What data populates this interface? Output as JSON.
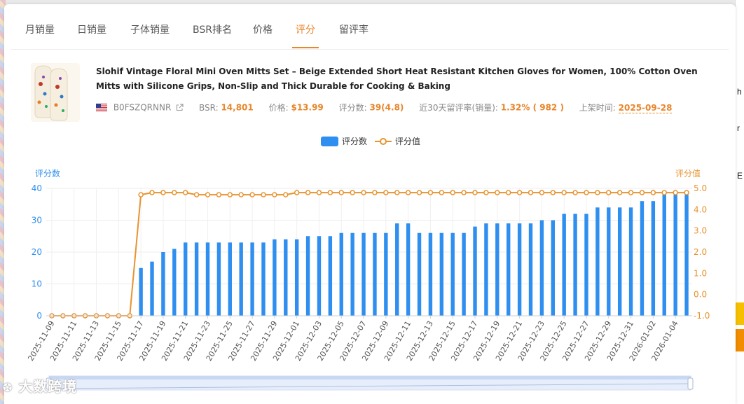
{
  "tabs": [
    {
      "label": "月销量"
    },
    {
      "label": "日销量"
    },
    {
      "label": "子体销量"
    },
    {
      "label": "BSR排名"
    },
    {
      "label": "价格"
    },
    {
      "label": "评分"
    },
    {
      "label": "留评率"
    }
  ],
  "active_tab": "评分",
  "product": {
    "title": "Slohif Vintage Floral Mini Oven Mitts Set – Beige Extended Short Heat Resistant Kitchen Gloves for Women, 100% Cotton Oven Mitts with Silicone Grips, Non-Slip and Thick Durable for Cooking & Baking",
    "asin": "B0FSZQRNNR",
    "bsr_label": "BSR:",
    "bsr_value": "14,801",
    "price_label": "价格:",
    "price_value": "$13.99",
    "rating_count_label": "评分数:",
    "rating_count_value": "39(4.8)",
    "review_rate_label": "近30天留评率(销量):",
    "review_rate_value": "1.32% ( 982 )",
    "launch_label": "上架时间:",
    "launch_value": "2025-09-28"
  },
  "watermark": "大数跨境",
  "colors": {
    "bar": "#2f8ff0",
    "line": "#e8932f",
    "accent": "#e8862c"
  },
  "icons": {
    "flag": "us-flag-icon",
    "external": "external-link-icon"
  },
  "chart_data": {
    "type": "bar+line",
    "legend": [
      "评分数",
      "评分值"
    ],
    "legend_position": "top-center",
    "yleft_label": "评分数",
    "yright_label": "评分值",
    "yleft_ticks": [
      "0",
      "10",
      "20",
      "30",
      "40"
    ],
    "yright_ticks": [
      "-1.0",
      "0.0",
      "1.0",
      "2.0",
      "3.0",
      "4.0",
      "5.0"
    ],
    "yleft_range": [
      0,
      40
    ],
    "yright_range": [
      -1,
      5
    ],
    "grid": true,
    "x": [
      "2025-11-09",
      "2025-11-10",
      "2025-11-11",
      "2025-11-12",
      "2025-11-13",
      "2025-11-14",
      "2025-11-15",
      "2025-11-16",
      "2025-11-17",
      "2025-11-18",
      "2025-11-19",
      "2025-11-20",
      "2025-11-21",
      "2025-11-22",
      "2025-11-23",
      "2025-11-24",
      "2025-11-25",
      "2025-11-26",
      "2025-11-27",
      "2025-11-28",
      "2025-11-29",
      "2025-11-30",
      "2025-12-01",
      "2025-12-02",
      "2025-12-03",
      "2025-12-04",
      "2025-12-05",
      "2025-12-06",
      "2025-12-07",
      "2025-12-08",
      "2025-12-09",
      "2025-12-10",
      "2025-12-11",
      "2025-12-12",
      "2025-12-13",
      "2025-12-14",
      "2025-12-15",
      "2025-12-16",
      "2025-12-17",
      "2025-12-18",
      "2025-12-19",
      "2025-12-20",
      "2025-12-21",
      "2025-12-22",
      "2025-12-23",
      "2025-12-24",
      "2025-12-25",
      "2025-12-26",
      "2025-12-27",
      "2025-12-28",
      "2025-12-29",
      "2025-12-30",
      "2025-12-31",
      "2026-01-01",
      "2026-01-02",
      "2026-01-03",
      "2026-01-04",
      "2026-01-05"
    ],
    "x_tick_labels": [
      "2025-11-09",
      "2025-11-11",
      "2025-11-13",
      "2025-11-15",
      "2025-11-17",
      "2025-11-19",
      "2025-11-21",
      "2025-11-23",
      "2025-11-25",
      "2025-11-27",
      "2025-11-29",
      "2025-12-01",
      "2025-12-03",
      "2025-12-05",
      "2025-12-07",
      "2025-12-09",
      "2025-12-11",
      "2025-12-13",
      "2025-12-15",
      "2025-12-17",
      "2025-12-19",
      "2025-12-21",
      "2025-12-23",
      "2025-12-25",
      "2025-12-27",
      "2025-12-29",
      "2025-12-31",
      "2026-01-02",
      "2026-01-04"
    ],
    "series": [
      {
        "name": "评分数",
        "type": "bar",
        "axis": "left",
        "values": [
          0,
          0,
          0,
          0,
          0,
          0,
          0,
          0,
          15,
          17,
          20,
          21,
          23,
          23,
          23,
          23,
          23,
          23,
          23,
          23,
          24,
          24,
          24,
          25,
          25,
          25,
          26,
          26,
          26,
          26,
          26,
          29,
          29,
          26,
          26,
          26,
          26,
          26,
          28,
          29,
          29,
          29,
          29,
          29,
          30,
          30,
          32,
          32,
          32,
          34,
          34,
          34,
          34,
          36,
          36,
          38,
          38,
          38
        ]
      },
      {
        "name": "评分值",
        "type": "line",
        "axis": "right",
        "values": [
          -1,
          -1,
          -1,
          -1,
          -1,
          -1,
          -1,
          -1,
          4.7,
          4.8,
          4.8,
          4.8,
          4.8,
          4.7,
          4.7,
          4.7,
          4.7,
          4.7,
          4.7,
          4.7,
          4.7,
          4.7,
          4.8,
          4.8,
          4.8,
          4.8,
          4.8,
          4.8,
          4.8,
          4.8,
          4.8,
          4.8,
          4.8,
          4.8,
          4.8,
          4.8,
          4.8,
          4.8,
          4.8,
          4.8,
          4.8,
          4.8,
          4.8,
          4.8,
          4.8,
          4.8,
          4.8,
          4.8,
          4.8,
          4.8,
          4.8,
          4.8,
          4.8,
          4.8,
          4.8,
          4.8,
          4.8,
          4.8
        ]
      }
    ]
  }
}
